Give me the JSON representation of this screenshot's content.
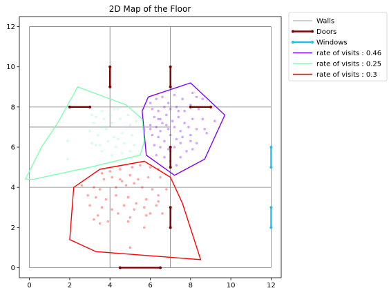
{
  "chart_data": {
    "type": "scatter",
    "title": "2D Map of the Floor",
    "xlabel": "",
    "ylabel": "",
    "xlim": [
      -0.5,
      12.5
    ],
    "ylim": [
      -0.5,
      12.5
    ],
    "xticks": [
      0,
      2,
      4,
      6,
      8,
      10,
      12
    ],
    "yticks": [
      0,
      2,
      4,
      6,
      8,
      10,
      12
    ],
    "grid": false,
    "legend_position": "outside-top-right",
    "legend": [
      {
        "label": "Walls",
        "color": "#808080",
        "kind": "line"
      },
      {
        "label": "Doors",
        "color": "#7a0000",
        "kind": "marker-line"
      },
      {
        "label": "Windows",
        "color": "#1ec0f0",
        "kind": "marker-line"
      },
      {
        "label": "rate of visits : 0.46",
        "color": "#8000ff",
        "kind": "line"
      },
      {
        "label": "rate of visits : 0.25",
        "color": "#80ffb4",
        "kind": "line"
      },
      {
        "label": "rate of visits : 0.3",
        "color": "#ff0000",
        "kind": "line"
      }
    ],
    "walls": [
      [
        [
          0,
          0
        ],
        [
          12,
          0
        ]
      ],
      [
        [
          12,
          0
        ],
        [
          12,
          12
        ]
      ],
      [
        [
          12,
          12
        ],
        [
          0,
          12
        ]
      ],
      [
        [
          0,
          12
        ],
        [
          0,
          0
        ]
      ],
      [
        [
          4,
          0
        ],
        [
          4,
          4
        ]
      ],
      [
        [
          7,
          0
        ],
        [
          7,
          12
        ]
      ],
      [
        [
          4,
          7
        ],
        [
          4,
          12
        ]
      ],
      [
        [
          0,
          4
        ],
        [
          12,
          4
        ]
      ],
      [
        [
          0,
          8
        ],
        [
          12,
          8
        ]
      ],
      [
        [
          0,
          7
        ],
        [
          7,
          7
        ]
      ]
    ],
    "doors": [
      [
        [
          4.5,
          0
        ],
        [
          6.5,
          0
        ]
      ],
      [
        [
          7,
          2
        ],
        [
          7,
          3
        ]
      ],
      [
        [
          7,
          5
        ],
        [
          7,
          6
        ]
      ],
      [
        [
          4,
          9
        ],
        [
          4,
          10
        ]
      ],
      [
        [
          7,
          9
        ],
        [
          7,
          10
        ]
      ],
      [
        [
          2,
          8
        ],
        [
          3,
          8
        ]
      ],
      [
        [
          8,
          8
        ],
        [
          9,
          8
        ]
      ]
    ],
    "windows": [
      [
        [
          12,
          2
        ],
        [
          12,
          3
        ]
      ],
      [
        [
          12,
          5
        ],
        [
          12,
          6
        ]
      ]
    ],
    "series": [
      {
        "name": "rate of visits : 0.46",
        "color": "#8000ff",
        "hull": [
          [
            5.9,
            8.5
          ],
          [
            8,
            9.2
          ],
          [
            9.7,
            7.6
          ],
          [
            8.7,
            5.4
          ],
          [
            7.2,
            4.6
          ],
          [
            5.8,
            5.6
          ],
          [
            5.6,
            7.8
          ],
          [
            5.9,
            8.5
          ]
        ],
        "points": [
          [
            6.0,
            8.2
          ],
          [
            6.3,
            8.4
          ],
          [
            6.6,
            8.5
          ],
          [
            7.2,
            8.6
          ],
          [
            7.6,
            8.4
          ],
          [
            8.1,
            8.7
          ],
          [
            8.3,
            8.5
          ],
          [
            8.6,
            8.4
          ],
          [
            6.1,
            7.9
          ],
          [
            6.4,
            7.8
          ],
          [
            6.7,
            8.0
          ],
          [
            7.0,
            7.9
          ],
          [
            7.3,
            8.0
          ],
          [
            7.7,
            7.8
          ],
          [
            8.0,
            8.1
          ],
          [
            8.4,
            7.9
          ],
          [
            6.2,
            7.5
          ],
          [
            6.5,
            7.4
          ],
          [
            6.8,
            7.6
          ],
          [
            7.1,
            7.3
          ],
          [
            7.4,
            7.5
          ],
          [
            7.7,
            7.2
          ],
          [
            8.1,
            7.4
          ],
          [
            8.6,
            7.4
          ],
          [
            6.0,
            7.1
          ],
          [
            6.3,
            7.0
          ],
          [
            6.6,
            7.2
          ],
          [
            6.9,
            6.9
          ],
          [
            7.2,
            7.0
          ],
          [
            7.5,
            6.8
          ],
          [
            7.9,
            7.0
          ],
          [
            8.3,
            6.9
          ],
          [
            8.8,
            6.7
          ],
          [
            6.1,
            6.6
          ],
          [
            6.4,
            6.5
          ],
          [
            6.7,
            6.3
          ],
          [
            7.0,
            6.6
          ],
          [
            7.3,
            6.4
          ],
          [
            7.6,
            6.5
          ],
          [
            8.0,
            6.3
          ],
          [
            8.3,
            6.2
          ],
          [
            6.2,
            6.1
          ],
          [
            6.5,
            6.0
          ],
          [
            6.9,
            5.9
          ],
          [
            7.2,
            6.0
          ],
          [
            7.5,
            6.2
          ],
          [
            7.8,
            5.8
          ],
          [
            6.3,
            5.6
          ],
          [
            6.7,
            5.5
          ],
          [
            7.0,
            5.3
          ],
          [
            7.5,
            5.5
          ],
          [
            7.3,
            5.1
          ],
          [
            6.0,
            6.9
          ],
          [
            6.9,
            8.2
          ],
          [
            8.7,
            6.9
          ],
          [
            9.2,
            7.3
          ],
          [
            8.1,
            5.9
          ],
          [
            6.5,
            6.8
          ],
          [
            6.8,
            7.1
          ],
          [
            7.4,
            7.8
          ],
          [
            6.4,
            7.4
          ],
          [
            8.0,
            6.6
          ],
          [
            7.0,
            5.8
          ]
        ]
      },
      {
        "name": "rate of visits : 0.25",
        "color": "#80ffb4",
        "hull": [
          [
            -0.2,
            4.4
          ],
          [
            0.6,
            6.0
          ],
          [
            1.4,
            7.2
          ],
          [
            2.4,
            9.0
          ],
          [
            4.8,
            8.1
          ],
          [
            5.6,
            7.4
          ],
          [
            5.7,
            6.3
          ],
          [
            5.5,
            5.6
          ],
          [
            3.0,
            5.0
          ],
          [
            0.2,
            4.4
          ],
          [
            -0.2,
            4.4
          ]
        ],
        "points": [
          [
            3.1,
            7.6
          ],
          [
            3.3,
            7.5
          ],
          [
            3.6,
            7.8
          ],
          [
            4.0,
            7.6
          ],
          [
            4.4,
            7.9
          ],
          [
            4.9,
            7.6
          ],
          [
            3.2,
            7.2
          ],
          [
            3.6,
            7.0
          ],
          [
            4.1,
            7.2
          ],
          [
            4.5,
            7.4
          ],
          [
            5.0,
            7.1
          ],
          [
            5.3,
            7.3
          ],
          [
            3.0,
            6.8
          ],
          [
            3.4,
            6.6
          ],
          [
            3.8,
            6.9
          ],
          [
            4.2,
            6.5
          ],
          [
            4.6,
            6.7
          ],
          [
            5.1,
            6.6
          ],
          [
            3.1,
            6.2
          ],
          [
            3.5,
            6.1
          ],
          [
            3.9,
            6.3
          ],
          [
            4.3,
            6.0
          ],
          [
            4.7,
            6.2
          ],
          [
            5.2,
            6.1
          ],
          [
            3.6,
            5.8
          ],
          [
            4.1,
            5.6
          ],
          [
            4.6,
            5.7
          ],
          [
            5.0,
            5.8
          ],
          [
            5.4,
            5.6
          ],
          [
            1.9,
            6.3
          ],
          [
            1.9,
            5.4
          ],
          [
            3.3,
            6.1
          ],
          [
            4.4,
            6.4
          ],
          [
            4.8,
            7.0
          ],
          [
            3.7,
            7.4
          ],
          [
            4.2,
            7.9
          ]
        ]
      },
      {
        "name": "rate of visits : 0.3",
        "color": "#ff0000",
        "hull": [
          [
            3.5,
            4.9
          ],
          [
            5.7,
            5.3
          ],
          [
            7.0,
            4.5
          ],
          [
            7.6,
            3.2
          ],
          [
            8.5,
            0.4
          ],
          [
            3.3,
            0.8
          ],
          [
            2.0,
            1.4
          ],
          [
            2.2,
            4.0
          ],
          [
            3.5,
            4.9
          ]
        ],
        "points": [
          [
            3.6,
            4.7
          ],
          [
            4.0,
            4.8
          ],
          [
            4.5,
            4.9
          ],
          [
            5.1,
            5.0
          ],
          [
            5.5,
            5.1
          ],
          [
            6.0,
            5.0
          ],
          [
            6.4,
            4.9
          ],
          [
            3.7,
            4.4
          ],
          [
            4.1,
            4.5
          ],
          [
            4.6,
            4.3
          ],
          [
            5.0,
            4.6
          ],
          [
            5.4,
            4.4
          ],
          [
            5.9,
            4.5
          ],
          [
            6.5,
            4.5
          ],
          [
            2.6,
            4.1
          ],
          [
            3.2,
            4.0
          ],
          [
            3.5,
            3.9
          ],
          [
            4.3,
            4.0
          ],
          [
            4.8,
            4.1
          ],
          [
            5.6,
            4.0
          ],
          [
            6.1,
            3.9
          ],
          [
            6.8,
            3.9
          ],
          [
            3.3,
            3.5
          ],
          [
            3.8,
            3.4
          ],
          [
            4.3,
            3.6
          ],
          [
            4.9,
            3.5
          ],
          [
            5.3,
            3.2
          ],
          [
            5.8,
            3.4
          ],
          [
            6.4,
            3.3
          ],
          [
            3.0,
            3.1
          ],
          [
            3.6,
            3.0
          ],
          [
            4.1,
            2.9
          ],
          [
            4.7,
            3.1
          ],
          [
            5.2,
            2.9
          ],
          [
            5.7,
            3.0
          ],
          [
            6.3,
            3.1
          ],
          [
            6.6,
            2.7
          ],
          [
            3.4,
            2.6
          ],
          [
            4.4,
            2.7
          ],
          [
            5.0,
            2.5
          ],
          [
            6.0,
            2.7
          ],
          [
            3.2,
            2.4
          ],
          [
            3.9,
            2.3
          ],
          [
            4.9,
            2.3
          ],
          [
            5.8,
            2.6
          ],
          [
            3.5,
            2.2
          ],
          [
            5.7,
            2.0
          ],
          [
            5.0,
            1.0
          ],
          [
            6.4,
            3.6
          ],
          [
            2.9,
            3.6
          ],
          [
            4.5,
            4.4
          ],
          [
            5.2,
            4.2
          ]
        ]
      }
    ]
  }
}
